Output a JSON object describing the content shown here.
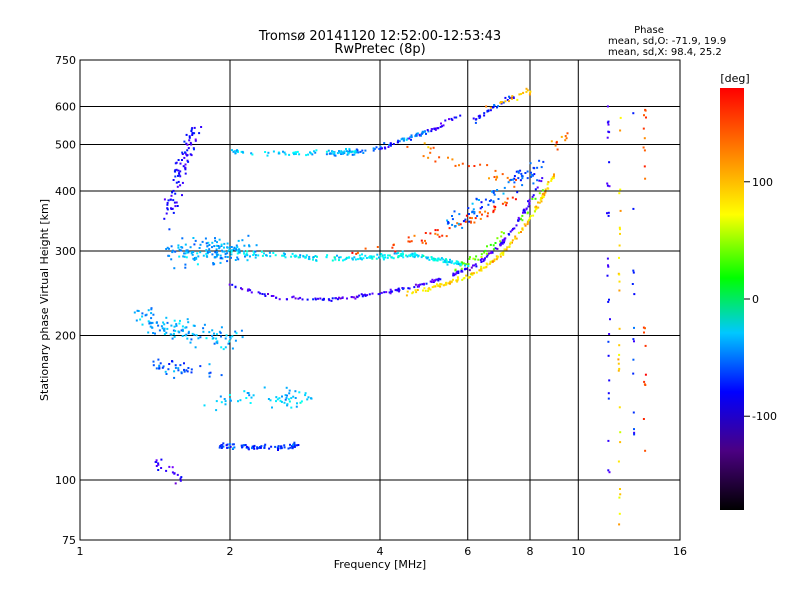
{
  "chart_data": {
    "type": "scatter",
    "title": "Tromsø 20141120 12:52:00-12:53:43",
    "subtitle": "RwPretec (8p)",
    "xlabel": "Frequency [MHz]",
    "ylabel": "Stationary phase Virtual Height [km]",
    "x_scale": "log",
    "y_scale": "log",
    "xlim": [
      1,
      16
    ],
    "ylim": [
      75,
      750
    ],
    "x_ticks": [
      1,
      2,
      4,
      6,
      8,
      10,
      16
    ],
    "y_ticks": [
      75,
      100,
      200,
      300,
      400,
      500,
      600,
      750
    ],
    "grid": true,
    "phase_stats": {
      "header": "Phase",
      "line_o": "mean, sd,O: -71.9, 19.9",
      "line_x": "mean, sd,X:  98.4, 25.2"
    },
    "colorbar": {
      "label": "[deg]",
      "ticks": [
        100,
        0,
        -100
      ],
      "range": [
        -180,
        180
      ]
    },
    "traces": [
      {
        "x": [
          3.0,
          3.5,
          4.0,
          4.5,
          5.0
        ],
        "y": [
          475,
          480,
          492,
          515,
          535
        ],
        "phase": -60,
        "count": 60,
        "jitter": 0.012
      },
      {
        "x": [
          4.0,
          5.0,
          5.8
        ],
        "y": [
          490,
          530,
          580
        ],
        "phase": -105,
        "count": 40,
        "jitter": 0.01
      },
      {
        "x": [
          6.2,
          6.8,
          7.4
        ],
        "y": [
          560,
          600,
          630
        ],
        "phase": -90,
        "count": 30,
        "jitter": 0.012
      },
      {
        "x": [
          6.6,
          7.4,
          8.0
        ],
        "y": [
          600,
          625,
          640
        ],
        "phase": 130,
        "count": 20,
        "jitter": 0.02
      },
      {
        "x": [
          4.5,
          5.5,
          6.5,
          7.5
        ],
        "y": [
          500,
          470,
          440,
          420
        ],
        "phase": 150,
        "count": 30,
        "jitter": 0.03
      },
      {
        "x": [
          2.0,
          2.3,
          2.8,
          3.2,
          3.6
        ],
        "y": [
          485,
          480,
          478,
          480,
          485
        ],
        "phase": -40,
        "count": 70,
        "jitter": 0.012
      },
      {
        "x": [
          2.0,
          2.5,
          3.0,
          3.5,
          4.0,
          4.5,
          5.0,
          5.5,
          6.0,
          6.5,
          7.0,
          7.5,
          8.0,
          8.5
        ],
        "y": [
          255,
          240,
          238,
          240,
          245,
          250,
          258,
          265,
          275,
          290,
          310,
          340,
          380,
          430
        ],
        "phase": -110,
        "count": 200,
        "jitter": 0.008
      },
      {
        "x": [
          4.5,
          5.0,
          5.5,
          6.0,
          6.5,
          7.0,
          7.5,
          8.0,
          8.5,
          9.0
        ],
        "y": [
          245,
          250,
          258,
          265,
          278,
          295,
          320,
          350,
          390,
          440
        ],
        "phase": 120,
        "count": 150,
        "jitter": 0.01
      },
      {
        "x": [
          5.5,
          6.5,
          7.5,
          8.5
        ],
        "y": [
          270,
          300,
          340,
          400
        ],
        "phase": 70,
        "count": 40,
        "jitter": 0.02
      },
      {
        "x": [
          2.0,
          2.5,
          3.0,
          3.5,
          4.0,
          4.5,
          5.0,
          5.5,
          6.0
        ],
        "y": [
          300,
          295,
          290,
          290,
          292,
          295,
          290,
          285,
          280
        ],
        "phase": -30,
        "count": 200,
        "jitter": 0.012
      },
      {
        "x": [
          1.5,
          1.8,
          2.2
        ],
        "y": [
          295,
          300,
          305
        ],
        "phase": -50,
        "count": 150,
        "jitter": 0.06
      },
      {
        "x": [
          3.5,
          4.5,
          5.5,
          6.5,
          7.5
        ],
        "y": [
          300,
          310,
          330,
          360,
          390
        ],
        "phase": 160,
        "count": 60,
        "jitter": 0.025
      },
      {
        "x": [
          5.5,
          6.5,
          7.5,
          8.5
        ],
        "y": [
          340,
          380,
          420,
          450
        ],
        "phase": -70,
        "count": 80,
        "jitter": 0.04
      },
      {
        "x": [
          1.5,
          1.6,
          1.7
        ],
        "y": [
          350,
          450,
          550
        ],
        "phase": -100,
        "count": 90,
        "jitter": 0.05
      },
      {
        "x": [
          1.3,
          1.5,
          1.8,
          2.1
        ],
        "y": [
          220,
          210,
          200,
          195
        ],
        "phase": -50,
        "count": 120,
        "jitter": 0.05
      },
      {
        "x": [
          1.4,
          1.6,
          1.9
        ],
        "y": [
          175,
          170,
          168
        ],
        "phase": -70,
        "count": 40,
        "jitter": 0.04
      },
      {
        "x": [
          1.8,
          2.2,
          2.6,
          2.9
        ],
        "y": [
          145,
          150,
          148,
          150
        ],
        "phase": -40,
        "count": 60,
        "jitter": 0.04
      },
      {
        "x": [
          1.9,
          2.2,
          2.5,
          2.8
        ],
        "y": [
          118,
          117,
          117,
          118
        ],
        "phase": -80,
        "count": 80,
        "jitter": 0.012
      },
      {
        "x": [
          1.4,
          1.5,
          1.6
        ],
        "y": [
          110,
          105,
          100
        ],
        "phase": -110,
        "count": 20,
        "jitter": 0.03
      },
      {
        "x": [
          11.5,
          11.5
        ],
        "y": [
          100,
          600
        ],
        "phase": -110,
        "count": 30,
        "jitter": 0.01
      },
      {
        "x": [
          12.1,
          12.1
        ],
        "y": [
          80,
          600
        ],
        "phase": 120,
        "count": 30,
        "jitter": 0.008
      },
      {
        "x": [
          12.9,
          12.9
        ],
        "y": [
          120,
          600
        ],
        "phase": -90,
        "count": 15,
        "jitter": 0.01
      },
      {
        "x": [
          13.6,
          13.6
        ],
        "y": [
          105,
          600
        ],
        "phase": 160,
        "count": 20,
        "jitter": 0.01
      },
      {
        "x": [
          9.0,
          9.5
        ],
        "y": [
          500,
          520
        ],
        "phase": 150,
        "count": 10,
        "jitter": 0.03
      }
    ]
  }
}
